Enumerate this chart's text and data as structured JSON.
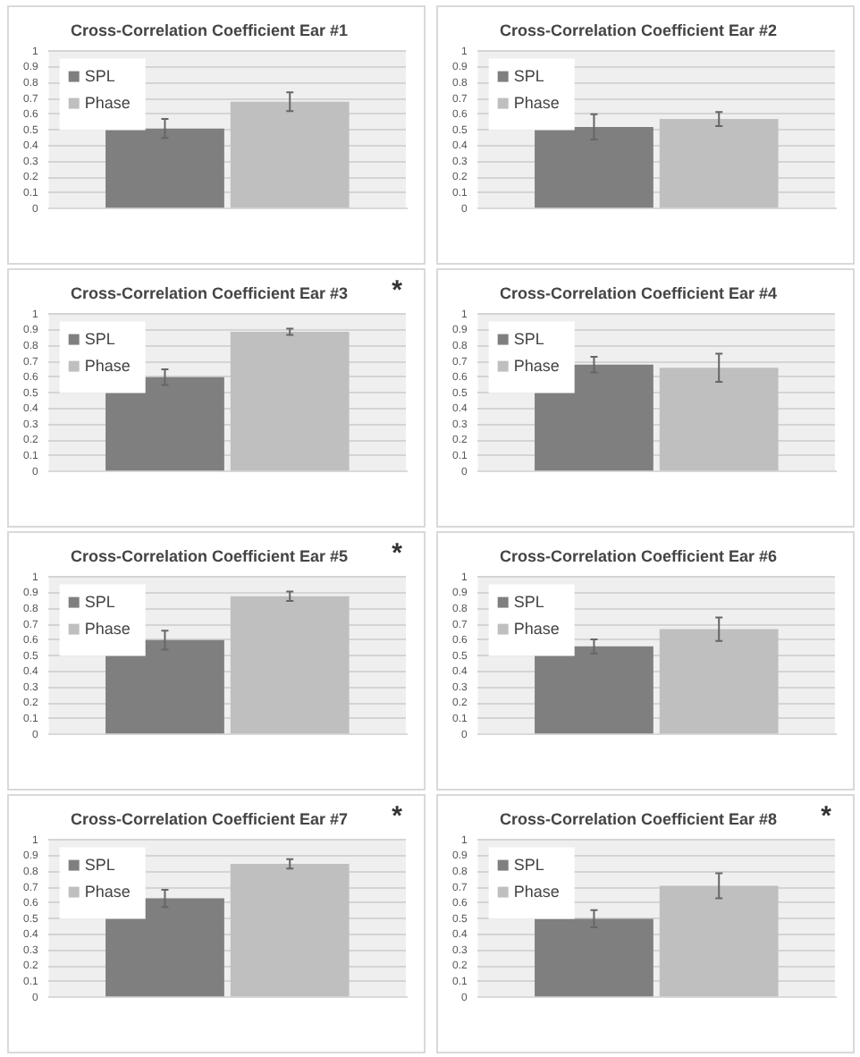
{
  "chart_data": [
    {
      "type": "bar",
      "title": "Cross-Correlation Coefficient Ear #1",
      "categories": [
        null
      ],
      "series": [
        {
          "name": "SPL",
          "color": "#7f7f7f",
          "values": [
            0.51
          ],
          "errors": [
            0.06
          ]
        },
        {
          "name": "Phase",
          "color": "#bfbfbf",
          "values": [
            0.68
          ],
          "errors": [
            0.06
          ]
        }
      ],
      "ylim": [
        0,
        1
      ],
      "yticks": [
        0,
        0.1,
        0.2,
        0.3,
        0.4,
        0.5,
        0.6,
        0.7,
        0.8,
        0.9,
        1
      ],
      "grid": "y",
      "legend": "top left"
    },
    {
      "type": "bar",
      "title": "Cross-Correlation Coefficient Ear #2",
      "categories": [
        null
      ],
      "series": [
        {
          "name": "SPL",
          "color": "#7f7f7f",
          "values": [
            0.52
          ],
          "errors": [
            0.08
          ]
        },
        {
          "name": "Phase",
          "color": "#bfbfbf",
          "values": [
            0.57
          ],
          "errors": [
            0.045
          ]
        }
      ],
      "ylim": [
        0,
        1
      ],
      "yticks": [
        0,
        0.1,
        0.2,
        0.3,
        0.4,
        0.5,
        0.6,
        0.7,
        0.8,
        0.9,
        1
      ],
      "grid": "y",
      "legend": "top left"
    },
    {
      "type": "bar",
      "title": "Cross-Correlation Coefficient Ear #3",
      "annotations": [
        "*"
      ],
      "categories": [
        null
      ],
      "series": [
        {
          "name": "SPL",
          "color": "#7f7f7f",
          "values": [
            0.6
          ],
          "errors": [
            0.05
          ]
        },
        {
          "name": "Phase",
          "color": "#bfbfbf",
          "values": [
            0.89
          ],
          "errors": [
            0.02
          ]
        }
      ],
      "ylim": [
        0,
        1
      ],
      "yticks": [
        0,
        0.1,
        0.2,
        0.3,
        0.4,
        0.5,
        0.6,
        0.7,
        0.8,
        0.9,
        1
      ],
      "grid": "y",
      "legend": "top left"
    },
    {
      "type": "bar",
      "title": "Cross-Correlation Coefficient Ear #4",
      "categories": [
        null
      ],
      "series": [
        {
          "name": "SPL",
          "color": "#7f7f7f",
          "values": [
            0.68
          ],
          "errors": [
            0.05
          ]
        },
        {
          "name": "Phase",
          "color": "#bfbfbf",
          "values": [
            0.66
          ],
          "errors": [
            0.09
          ]
        }
      ],
      "ylim": [
        0,
        1
      ],
      "yticks": [
        0,
        0.1,
        0.2,
        0.3,
        0.4,
        0.5,
        0.6,
        0.7,
        0.8,
        0.9,
        1
      ],
      "grid": "y",
      "legend": "top left"
    },
    {
      "type": "bar",
      "title": "Cross-Correlation Coefficient Ear #5",
      "annotations": [
        "*"
      ],
      "categories": [
        null
      ],
      "series": [
        {
          "name": "SPL",
          "color": "#7f7f7f",
          "values": [
            0.6
          ],
          "errors": [
            0.06
          ]
        },
        {
          "name": "Phase",
          "color": "#bfbfbf",
          "values": [
            0.88
          ],
          "errors": [
            0.03
          ]
        }
      ],
      "ylim": [
        0,
        1
      ],
      "yticks": [
        0,
        0.1,
        0.2,
        0.3,
        0.4,
        0.5,
        0.6,
        0.7,
        0.8,
        0.9,
        1
      ],
      "grid": "y",
      "legend": "top left"
    },
    {
      "type": "bar",
      "title": "Cross-Correlation Coefficient Ear #6",
      "categories": [
        null
      ],
      "series": [
        {
          "name": "SPL",
          "color": "#7f7f7f",
          "values": [
            0.56
          ],
          "errors": [
            0.045
          ]
        },
        {
          "name": "Phase",
          "color": "#bfbfbf",
          "values": [
            0.67
          ],
          "errors": [
            0.075
          ]
        }
      ],
      "ylim": [
        0,
        1
      ],
      "yticks": [
        0,
        0.1,
        0.2,
        0.3,
        0.4,
        0.5,
        0.6,
        0.7,
        0.8,
        0.9,
        1
      ],
      "grid": "y",
      "legend": "top left"
    },
    {
      "type": "bar",
      "title": "Cross-Correlation Coefficient Ear #7",
      "annotations": [
        "*"
      ],
      "categories": [
        null
      ],
      "series": [
        {
          "name": "SPL",
          "color": "#7f7f7f",
          "values": [
            0.63
          ],
          "errors": [
            0.055
          ]
        },
        {
          "name": "Phase",
          "color": "#bfbfbf",
          "values": [
            0.85
          ],
          "errors": [
            0.03
          ]
        }
      ],
      "ylim": [
        0,
        1
      ],
      "yticks": [
        0,
        0.1,
        0.2,
        0.3,
        0.4,
        0.5,
        0.6,
        0.7,
        0.8,
        0.9,
        1
      ],
      "grid": "y",
      "legend": "top left"
    },
    {
      "type": "bar",
      "title": "Cross-Correlation Coefficient Ear #8",
      "annotations": [
        "*"
      ],
      "categories": [
        null
      ],
      "series": [
        {
          "name": "SPL",
          "color": "#7f7f7f",
          "values": [
            0.5
          ],
          "errors": [
            0.055
          ]
        },
        {
          "name": "Phase",
          "color": "#bfbfbf",
          "values": [
            0.71
          ],
          "errors": [
            0.08
          ]
        }
      ],
      "ylim": [
        0,
        1
      ],
      "yticks": [
        0,
        0.1,
        0.2,
        0.3,
        0.4,
        0.5,
        0.6,
        0.7,
        0.8,
        0.9,
        1
      ],
      "grid": "y",
      "legend": "top left"
    }
  ]
}
